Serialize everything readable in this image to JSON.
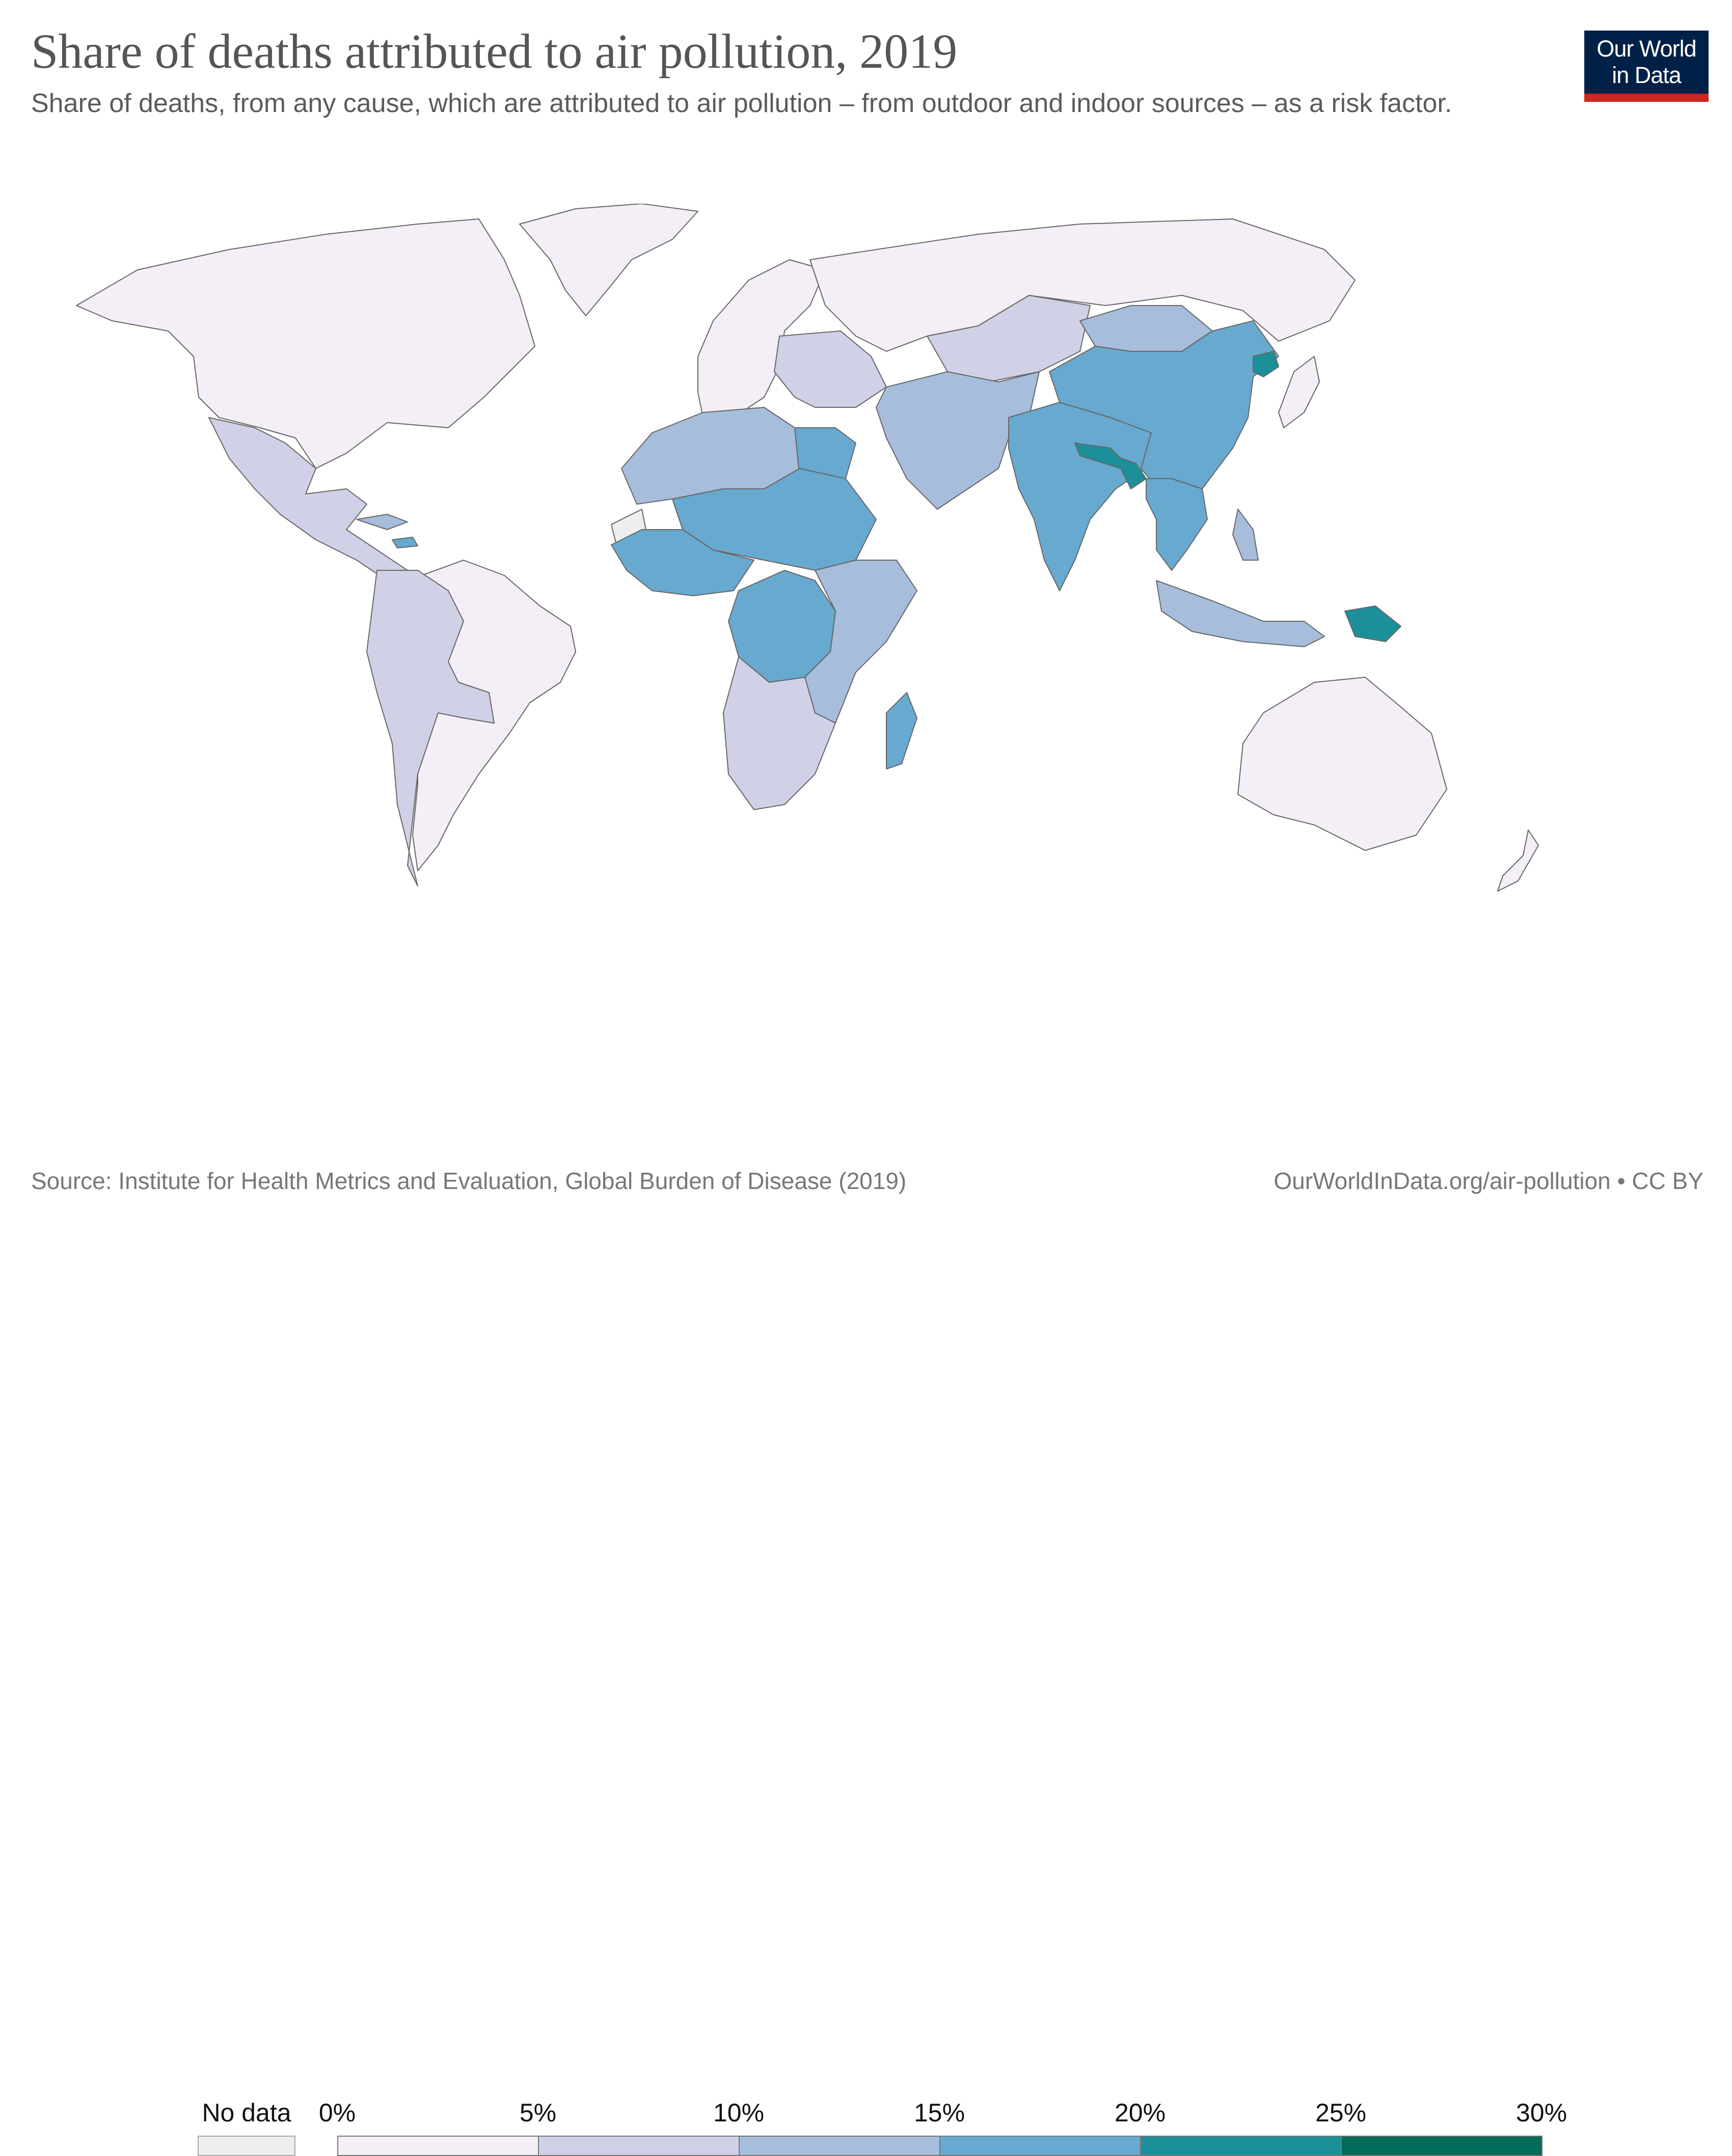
{
  "header": {
    "title": "Share of deaths attributed to air pollution, 2019",
    "subtitle": "Share of deaths, from any cause, which are attributed to air pollution – from outdoor and indoor sources – as a risk factor.",
    "logo_line1": "Our World",
    "logo_line2": "in Data"
  },
  "colors": {
    "bin_0_5": "#f4eef6",
    "bin_5_10": "#d0d1e6",
    "bin_10_15": "#a6bddb",
    "bin_15_20": "#67a9cf",
    "bin_20_25": "#1c9099",
    "bin_25_30": "#016c59",
    "no_data": "#eeeeee",
    "border": "#666666",
    "logo_bg": "#002147",
    "logo_bar": "#ce261e"
  },
  "legend": {
    "no_data_label": "No data",
    "tick_labels": [
      "0%",
      "5%",
      "10%",
      "15%",
      "20%",
      "25%",
      "30%"
    ],
    "bins": [
      {
        "min": 0,
        "max": 5,
        "color": "#f4eef6"
      },
      {
        "min": 5,
        "max": 10,
        "color": "#d0d1e6"
      },
      {
        "min": 10,
        "max": 15,
        "color": "#a6bddb"
      },
      {
        "min": 15,
        "max": 20,
        "color": "#67a9cf"
      },
      {
        "min": 20,
        "max": 25,
        "color": "#1c9099"
      },
      {
        "min": 25,
        "max": 30,
        "color": "#016c59"
      }
    ]
  },
  "map": {
    "bin_by_region": {
      "north-america": "0-5",
      "greenland": "0-5",
      "mexico-central-america": "5-10",
      "caribbean": "10-15",
      "haiti": "15-20",
      "south-america": "0-5",
      "andes-bolivia-paraguay": "5-10",
      "europe": "0-5",
      "eastern-europe-balkans": "5-10",
      "russia": "0-5",
      "central-asia": "5-10",
      "middle-east": "10-15",
      "north-africa": "10-15",
      "egypt": "15-20",
      "sahel": "15-20",
      "west-africa": "15-20",
      "central-africa": "15-20",
      "east-africa": "10-15",
      "southern-africa": "5-10",
      "madagascar": "15-20",
      "south-asia": "15-20",
      "nepal-bangladesh": "20-25",
      "china": "15-20",
      "mongolia": "10-15",
      "north-korea": "20-25",
      "japan": "0-5",
      "southeast-asia": "15-20",
      "philippines-indonesia": "10-15",
      "papua-new-guinea": "20-25",
      "australia": "0-5",
      "new-zealand": "0-5",
      "western-sahara": "no-data"
    }
  },
  "footer": {
    "source": "Source: Institute for Health Metrics and Evaluation, Global Burden of Disease (2019)",
    "credit": "OurWorldInData.org/air-pollution • CC BY"
  }
}
